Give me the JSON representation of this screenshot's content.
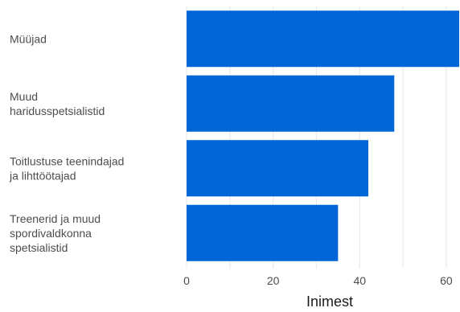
{
  "chart_data": {
    "type": "bar",
    "orientation": "horizontal",
    "categories": [
      [
        "Müüjad"
      ],
      [
        "Muud",
        "haridusspetsialistid"
      ],
      [
        "Toitlustuse teenindajad",
        "ja lihttöötajad"
      ],
      [
        "Treenerid ja muud",
        "spordivaldkonna",
        "spetsialistid"
      ]
    ],
    "values": [
      63,
      48,
      42,
      35
    ],
    "xlabel": "Inimest",
    "ylabel": "",
    "xlim": [
      0,
      63
    ],
    "xticks": [
      0,
      20,
      40,
      60
    ],
    "grid": true,
    "bar_color": "#0066d6"
  }
}
